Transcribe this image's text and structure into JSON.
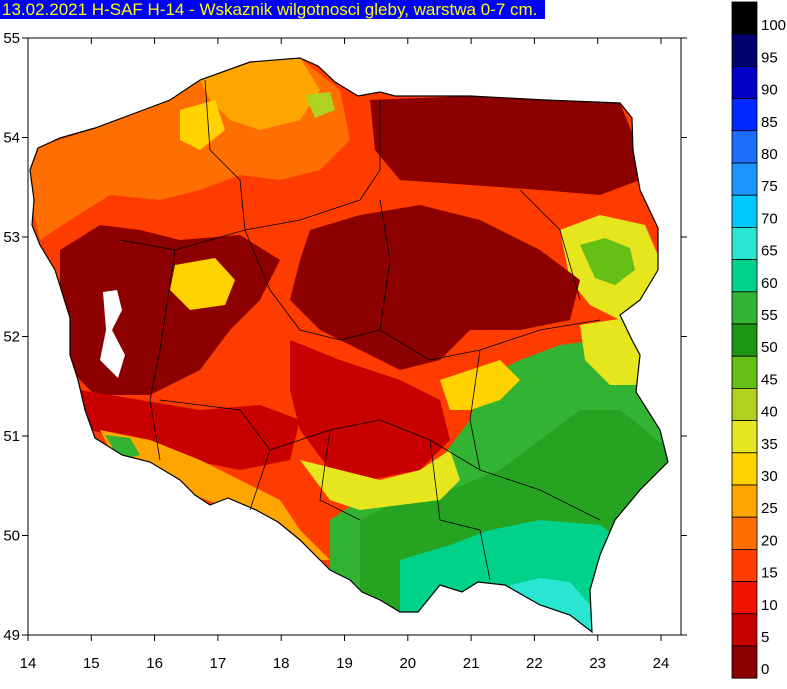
{
  "title": "13.02.2021 H-SAF H-14 - Wskaznik wilgotnosci gleby, warstwa 0-7 cm.",
  "axes": {
    "x_ticks": [
      "14",
      "15",
      "16",
      "17",
      "18",
      "19",
      "20",
      "21",
      "22",
      "23",
      "24"
    ],
    "y_ticks": [
      "55",
      "54",
      "53",
      "52",
      "51",
      "50",
      "49"
    ],
    "x_range": [
      14,
      24.2
    ],
    "y_range": [
      49,
      55
    ]
  },
  "legend": {
    "labels": [
      "100",
      "95",
      "90",
      "85",
      "80",
      "75",
      "70",
      "65",
      "60",
      "55",
      "50",
      "45",
      "40",
      "35",
      "30",
      "25",
      "20",
      "15",
      "10",
      "5",
      "0"
    ],
    "colors": [
      "#000000",
      "#00006e",
      "#0000c8",
      "#0028ff",
      "#1e6eff",
      "#1e96ff",
      "#00c8ff",
      "#28e6d2",
      "#00d28c",
      "#32b432",
      "#1e9614",
      "#64be14",
      "#afd21e",
      "#e6e61e",
      "#ffd200",
      "#ffa500",
      "#ff6e00",
      "#ff3c00",
      "#f01400",
      "#c80000",
      "#8c0000"
    ]
  },
  "colors": {
    "title_bg": "#0000ff",
    "title_fg": "#ffff00",
    "border_line": "#000000"
  }
}
